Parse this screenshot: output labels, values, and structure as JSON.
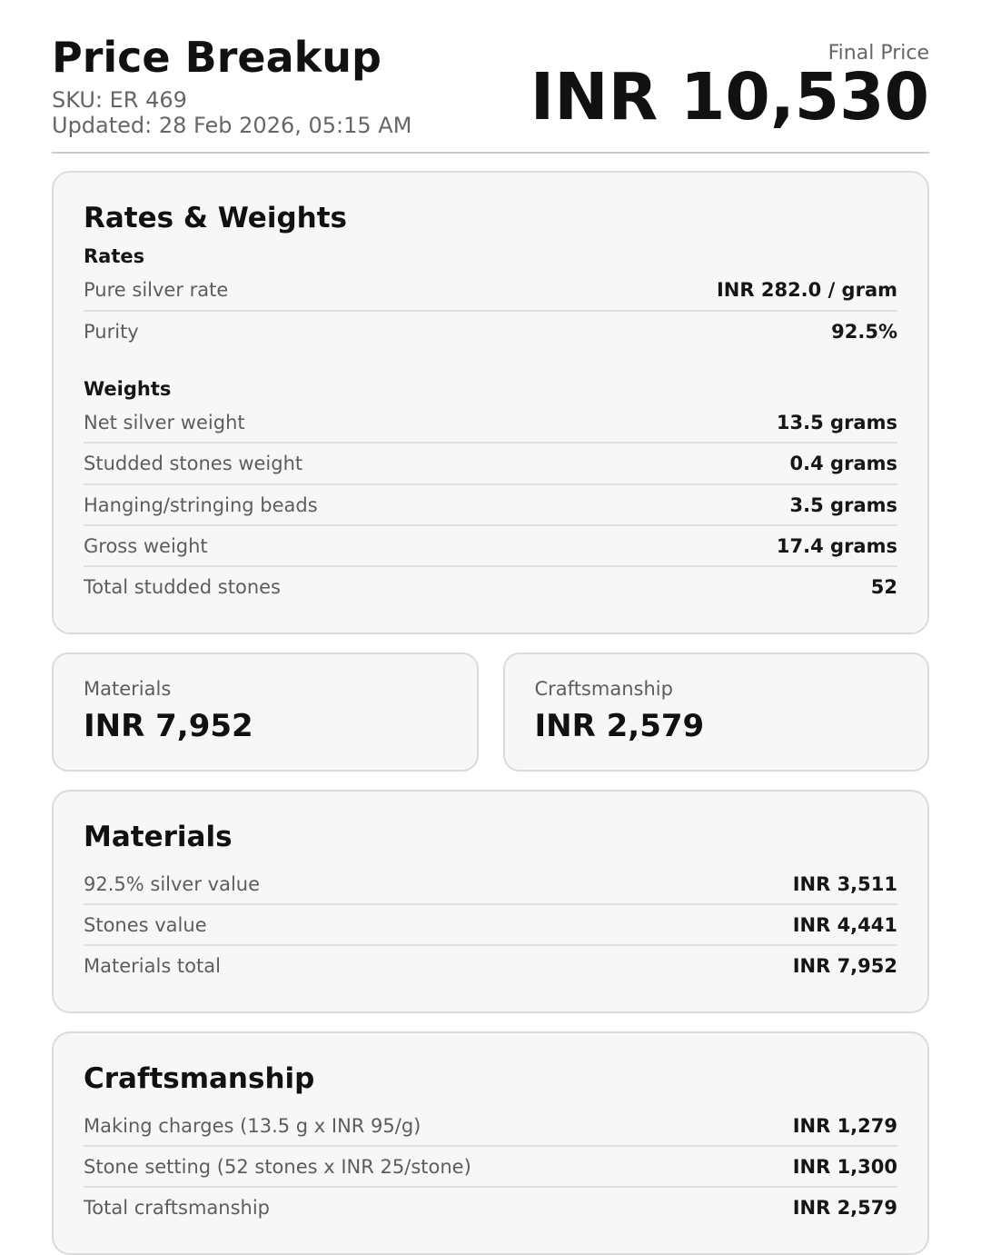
{
  "header": {
    "title": "Price Breakup",
    "sku": "SKU: ER 469",
    "updated": "Updated: 28 Feb 2026, 05:15 AM",
    "final_price_label": "Final Price",
    "final_price": "INR 10,530"
  },
  "rates_weights": {
    "title": "Rates & Weights",
    "sections": [
      {
        "heading": "Rates",
        "rows": [
          {
            "label": "Pure silver rate",
            "value": "INR 282.0 / gram"
          },
          {
            "label": "Purity",
            "value": "92.5%"
          }
        ]
      },
      {
        "heading": "Weights",
        "rows": [
          {
            "label": "Net silver weight",
            "value": "13.5 grams"
          },
          {
            "label": "Studded stones weight",
            "value": "0.4 grams"
          },
          {
            "label": "Hanging/stringing beads",
            "value": "3.5 grams"
          },
          {
            "label": "Gross weight",
            "value": "17.4 grams"
          },
          {
            "label": "Total studded stones",
            "value": "52"
          }
        ]
      }
    ]
  },
  "summary_cards": [
    {
      "label": "Materials",
      "value": "INR 7,952"
    },
    {
      "label": "Craftsmanship",
      "value": "INR 2,579"
    }
  ],
  "materials": {
    "title": "Materials",
    "rows": [
      {
        "label": "92.5% silver value",
        "value": "INR 3,511"
      },
      {
        "label": "Stones value",
        "value": "INR 4,441"
      },
      {
        "label": "Materials total",
        "value": "INR 7,952"
      }
    ]
  },
  "craftsmanship": {
    "title": "Craftsmanship",
    "rows": [
      {
        "label": "Making charges (13.5 g x INR 95/g)",
        "value": "INR 1,279"
      },
      {
        "label": "Stone setting (52 stones x INR 25/stone)",
        "value": "INR 1,300"
      },
      {
        "label": "Total craftsmanship",
        "value": "INR 2,579"
      }
    ]
  },
  "colors": {
    "text": "#1a1a1a",
    "label_gray": "#5d5d5d",
    "card_background": "#f7f7f7",
    "card_border": "#dbdbdb",
    "divider": "#e0e0e0"
  }
}
